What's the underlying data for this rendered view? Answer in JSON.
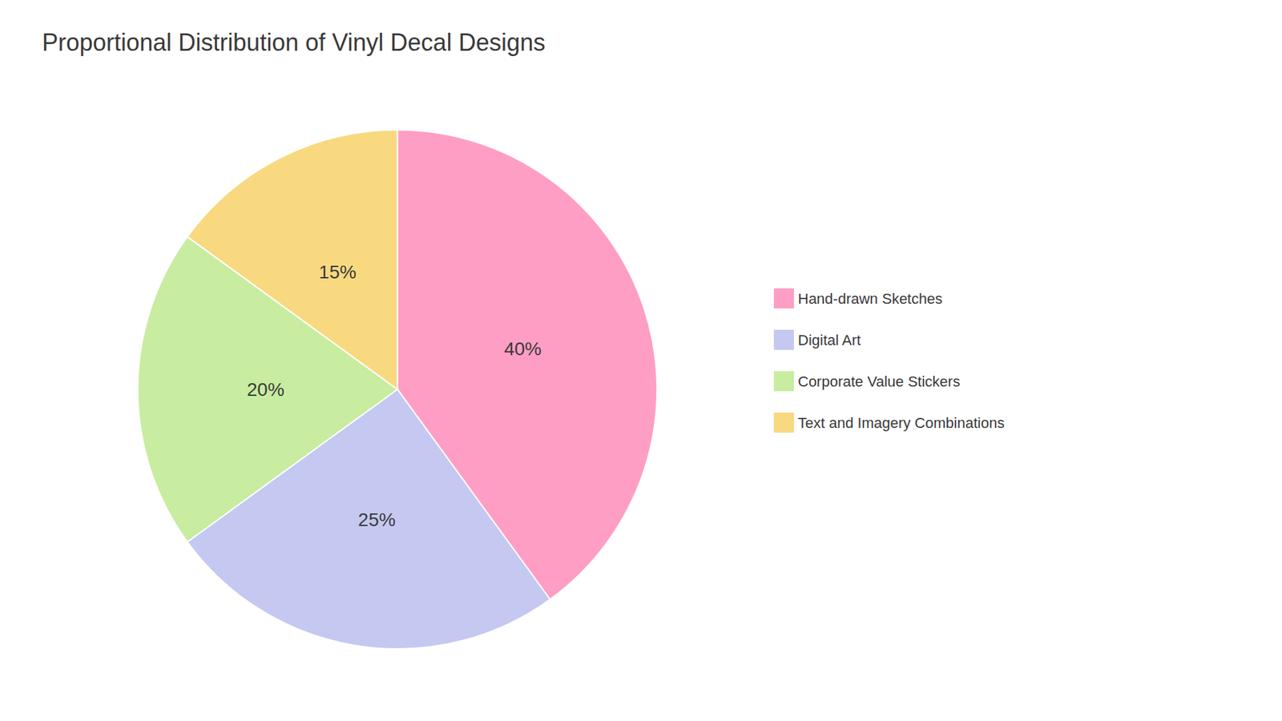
{
  "chart_data": {
    "type": "pie",
    "title": "Proportional Distribution of Vinyl Decal Designs",
    "categories": [
      "Hand-drawn Sketches",
      "Digital Art",
      "Corporate Value Stickers",
      "Text and Imagery Combinations"
    ],
    "values": [
      40,
      25,
      20,
      15
    ],
    "value_labels": [
      "40%",
      "25%",
      "20%",
      "15%"
    ],
    "colors": [
      "#FF9EC4",
      "#C5C8F0",
      "#C8ECA0",
      "#F8D980"
    ],
    "data_labels": true,
    "legend": "right"
  }
}
